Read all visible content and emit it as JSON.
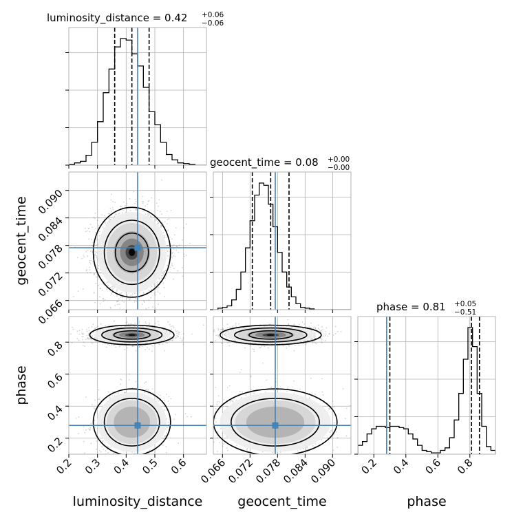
{
  "chart_data": {
    "type": "corner",
    "parameters": [
      "luminosity_distance",
      "geocent_time",
      "phase"
    ],
    "truth": {
      "luminosity_distance": 0.44,
      "geocent_time": 0.0775,
      "phase": 0.28
    },
    "truth_color": "#4682b4",
    "ranges": {
      "luminosity_distance": [
        0.2,
        0.68
      ],
      "geocent_time": [
        0.064,
        0.094
      ],
      "phase": [
        0.1,
        0.96
      ]
    },
    "ticks": {
      "luminosity_distance": [
        0.2,
        0.3,
        0.4,
        0.5,
        0.6
      ],
      "geocent_time": [
        0.066,
        0.072,
        0.078,
        0.084,
        0.09
      ],
      "phase": [
        0.2,
        0.4,
        0.6,
        0.8
      ]
    },
    "tick_labels": {
      "luminosity_distance": [
        "0.2",
        "0.3",
        "0.4",
        "0.5",
        "0.6"
      ],
      "geocent_time": [
        "0.066",
        "0.072",
        "0.078",
        "0.084",
        "0.090"
      ],
      "phase": [
        "0.2",
        "0.4",
        "0.6",
        "0.8"
      ]
    },
    "marginals": [
      {
        "param": "luminosity_distance",
        "title_main": "luminosity_distance = 0.42",
        "title_sup": "+0.06",
        "title_sub": "−0.06",
        "quantiles": [
          0.36,
          0.42,
          0.48
        ],
        "edges": [
          0.2,
          0.22,
          0.24,
          0.26,
          0.28,
          0.3,
          0.32,
          0.34,
          0.36,
          0.38,
          0.4,
          0.42,
          0.44,
          0.46,
          0.48,
          0.5,
          0.52,
          0.54,
          0.56,
          0.58,
          0.6,
          0.62,
          0.64,
          0.66,
          0.68
        ],
        "counts": [
          1,
          3,
          5,
          13,
          30,
          57,
          95,
          126,
          155,
          166,
          164,
          146,
          130,
          102,
          70,
          53,
          30,
          14,
          7,
          3,
          2,
          1,
          0,
          0
        ]
      },
      {
        "param": "geocent_time",
        "title_main": "geocent_time = 0.08",
        "title_sup": "+0.00",
        "title_sub": "−0.00",
        "quantiles": [
          0.0725,
          0.0765,
          0.0805
        ],
        "edges": [
          0.064,
          0.065,
          0.066,
          0.067,
          0.068,
          0.069,
          0.07,
          0.071,
          0.072,
          0.073,
          0.074,
          0.075,
          0.076,
          0.077,
          0.078,
          0.079,
          0.08,
          0.081,
          0.082,
          0.083,
          0.084,
          0.085,
          0.086,
          0.087,
          0.088,
          0.089,
          0.09,
          0.091,
          0.092,
          0.093,
          0.094
        ],
        "counts": [
          0,
          2,
          3,
          5,
          13,
          27,
          50,
          82,
          118,
          152,
          168,
          165,
          140,
          110,
          76,
          50,
          30,
          17,
          8,
          3,
          2,
          1,
          0,
          0,
          0,
          0,
          0,
          0,
          0,
          0
        ]
      },
      {
        "param": "phase",
        "title_main": "phase = 0.81",
        "title_sup": "+0.05",
        "title_sub": "−0.51",
        "quantiles": [
          0.3,
          0.81,
          0.86
        ],
        "edges": [
          0.1,
          0.1287,
          0.1573,
          0.186,
          0.2147,
          0.2433,
          0.272,
          0.3007,
          0.3293,
          0.358,
          0.3867,
          0.4153,
          0.444,
          0.4727,
          0.5013,
          0.53,
          0.5587,
          0.5873,
          0.616,
          0.6447,
          0.6733,
          0.702,
          0.7307,
          0.7593,
          0.788,
          0.8167,
          0.8453,
          0.874,
          0.9027,
          0.9313,
          0.96
        ],
        "counts": [
          7,
          10,
          16,
          20,
          22,
          22,
          21,
          22,
          22,
          21,
          20,
          16,
          12,
          7,
          3,
          2,
          1,
          1,
          3,
          5,
          13,
          27,
          48,
          75,
          100,
          85,
          48,
          22,
          6,
          3
        ]
      }
    ],
    "joints": [
      {
        "x": "luminosity_distance",
        "y": "geocent_time"
      },
      {
        "x": "luminosity_distance",
        "y": "phase"
      },
      {
        "x": "geocent_time",
        "y": "phase"
      }
    ]
  }
}
